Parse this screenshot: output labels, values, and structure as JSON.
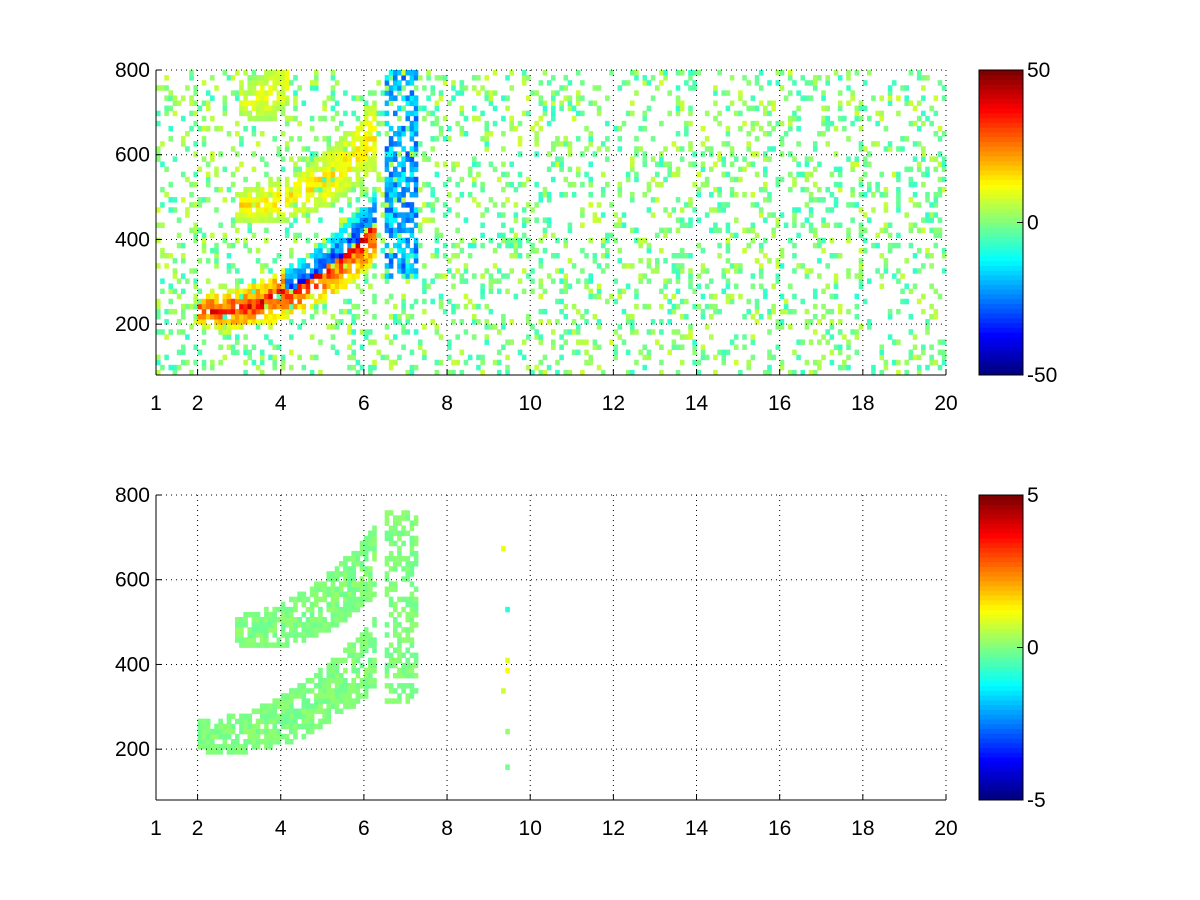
{
  "chart_data": [
    {
      "type": "heatmap",
      "title": "",
      "xlabel": "",
      "ylabel": "",
      "xlim": [
        1,
        20
      ],
      "ylim": [
        80,
        800
      ],
      "x_ticks": [
        1,
        2,
        4,
        6,
        8,
        10,
        12,
        14,
        16,
        18,
        20
      ],
      "y_ticks": [
        200,
        400,
        600,
        800
      ],
      "grid": true,
      "colormap": "jet",
      "clim": [
        -50,
        50
      ],
      "colorbar_ticks": [
        -50,
        0,
        50
      ],
      "features": [
        {
          "kind": "ridge",
          "x_range": [
            2,
            6.2
          ],
          "y_start": 225,
          "y_end": 420,
          "sign": "mixed",
          "magnitude": 45
        },
        {
          "kind": "ridge",
          "x_range": [
            2.9,
            6.2
          ],
          "y_start": 475,
          "y_end": 640,
          "sign": "positive",
          "magnitude": 20
        },
        {
          "kind": "ridge",
          "x_range": [
            3.0,
            4.2
          ],
          "y_start": 720,
          "y_end": 790,
          "sign": "positive",
          "magnitude": 15
        },
        {
          "kind": "band",
          "x_range": [
            6.4,
            7.2
          ],
          "y_range": [
            300,
            800
          ],
          "sign": "negative",
          "magnitude": 30
        }
      ],
      "background_noise": {
        "x_range": [
          1,
          20
        ],
        "magnitude": 8,
        "density": 0.45
      }
    },
    {
      "type": "heatmap",
      "title": "",
      "xlabel": "",
      "ylabel": "",
      "xlim": [
        1,
        20
      ],
      "ylim": [
        80,
        800
      ],
      "x_ticks": [
        1,
        2,
        4,
        6,
        8,
        10,
        12,
        14,
        16,
        18,
        20
      ],
      "y_ticks": [
        200,
        400,
        600,
        800
      ],
      "grid": true,
      "colormap": "jet",
      "clim": [
        -5,
        5
      ],
      "colorbar_ticks": [
        -5,
        0,
        5
      ],
      "features": [
        {
          "kind": "ridge",
          "x_range": [
            2,
            6.2
          ],
          "y_start": 225,
          "y_end": 420,
          "sign": "near-zero",
          "magnitude": 0.6
        },
        {
          "kind": "ridge",
          "x_range": [
            2.9,
            6.2
          ],
          "y_start": 475,
          "y_end": 640,
          "sign": "near-zero",
          "magnitude": 0.6
        },
        {
          "kind": "band",
          "x_range": [
            6.4,
            7.2
          ],
          "y_range": [
            300,
            760
          ],
          "sign": "near-zero",
          "magnitude": 0.6
        }
      ],
      "background_noise": {
        "x_range": [
          9.2,
          9.4
        ],
        "magnitude": 1.5,
        "density": 0.05
      }
    }
  ]
}
